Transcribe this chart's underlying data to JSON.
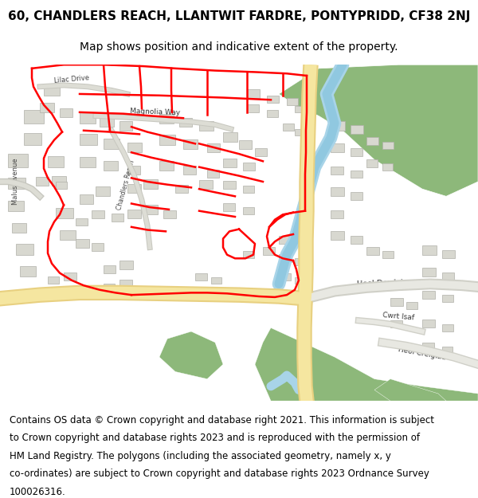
{
  "title_line1": "60, CHANDLERS REACH, LLANTWIT FARDRE, PONTYPRIDD, CF38 2NJ",
  "title_line2": "Map shows position and indicative extent of the property.",
  "footer_lines": [
    "Contains OS data © Crown copyright and database right 2021. This information is subject",
    "to Crown copyright and database rights 2023 and is reproduced with the permission of",
    "HM Land Registry. The polygons (including the associated geometry, namely x, y",
    "co-ordinates) are subject to Crown copyright and database rights 2023 Ordnance Survey",
    "100026316."
  ],
  "title_fontsize": 11,
  "subtitle_fontsize": 10,
  "footer_fontsize": 8.5,
  "fig_width": 6.0,
  "fig_height": 6.25,
  "map_bg": "#f8f8f5",
  "road_yellow": "#f5e6a0",
  "road_yellow_border": "#e8d080",
  "green_area": "#8db87a",
  "water_blue": "#a8d4e8",
  "building_color": "#d8d8d0",
  "building_border": "#b0b0a8",
  "plot_red": "#ff0000",
  "white_bg": "#ffffff",
  "text_color": "#000000"
}
